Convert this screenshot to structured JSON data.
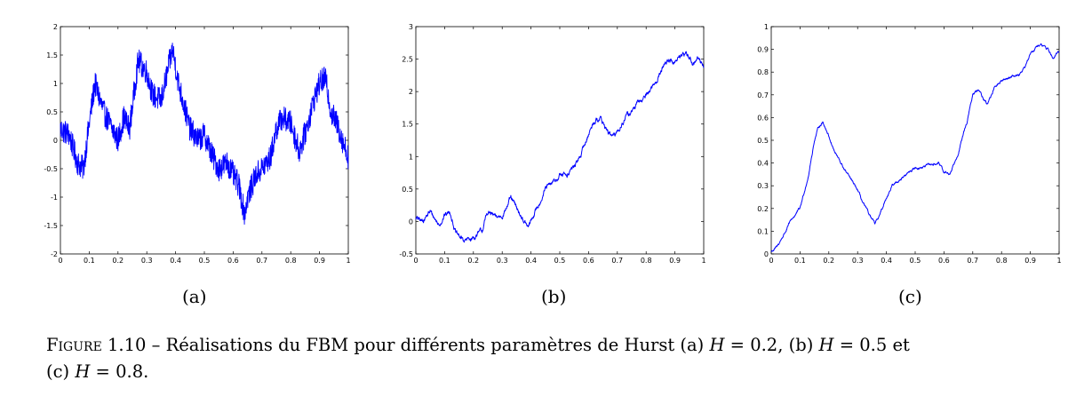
{
  "chart_data": [
    {
      "type": "line",
      "panel_label": "(a)",
      "x_ticks": [
        "0",
        "0.1",
        "0.2",
        "0.3",
        "0.4",
        "0.5",
        "0.6",
        "0.7",
        "0.8",
        "0.9",
        "1"
      ],
      "y_ticks": [
        "-2",
        "-1.5",
        "-1",
        "-0.5",
        "0",
        "0.5",
        "1",
        "1.5",
        "2"
      ],
      "xlim": [
        0,
        1
      ],
      "ylim": [
        -2,
        2
      ],
      "line_color": "#0000ff",
      "noise_amplitude": 0.22,
      "series": [
        {
          "x": [
            0,
            0.03,
            0.06,
            0.08,
            0.1,
            0.12,
            0.15,
            0.18,
            0.2,
            0.22,
            0.24,
            0.26,
            0.27,
            0.3,
            0.32,
            0.35,
            0.38,
            0.39,
            0.41,
            0.43,
            0.45,
            0.48,
            0.5,
            0.53,
            0.55,
            0.58,
            0.6,
            0.62,
            0.64,
            0.65,
            0.68,
            0.7,
            0.73,
            0.75,
            0.77,
            0.8,
            0.83,
            0.86,
            0.88,
            0.9,
            0.92,
            0.94,
            0.96,
            0.98,
            1.0
          ],
          "y": [
            0.2,
            0.1,
            -0.4,
            -0.5,
            0.3,
            1.0,
            0.5,
            0.2,
            0.0,
            0.4,
            0.2,
            1.0,
            1.4,
            1.2,
            0.8,
            0.7,
            1.4,
            1.6,
            1.0,
            0.6,
            0.2,
            0.0,
            0.1,
            -0.3,
            -0.5,
            -0.4,
            -0.6,
            -0.8,
            -1.3,
            -1.0,
            -0.6,
            -0.5,
            -0.3,
            0.2,
            0.4,
            0.3,
            -0.2,
            0.3,
            0.7,
            1.0,
            1.1,
            0.5,
            0.3,
            0.0,
            -0.3
          ]
        }
      ]
    },
    {
      "type": "line",
      "panel_label": "(b)",
      "x_ticks": [
        "0",
        "0.1",
        "0.2",
        "0.3",
        "0.4",
        "0.5",
        "0.6",
        "0.7",
        "0.8",
        "0.9",
        "1"
      ],
      "y_ticks": [
        "-0.5",
        "0",
        "0.5",
        "1",
        "1.5",
        "2",
        "2.5",
        "3"
      ],
      "xlim": [
        0,
        1
      ],
      "ylim": [
        -0.5,
        3
      ],
      "line_color": "#0000ff",
      "noise_amplitude": 0.05,
      "series": [
        {
          "x": [
            0,
            0.02,
            0.05,
            0.08,
            0.1,
            0.12,
            0.14,
            0.17,
            0.2,
            0.23,
            0.25,
            0.28,
            0.3,
            0.33,
            0.35,
            0.37,
            0.39,
            0.41,
            0.43,
            0.45,
            0.48,
            0.5,
            0.53,
            0.56,
            0.58,
            0.6,
            0.62,
            0.64,
            0.67,
            0.69,
            0.72,
            0.75,
            0.78,
            0.81,
            0.84,
            0.86,
            0.88,
            0.9,
            0.92,
            0.94,
            0.96,
            0.98,
            1.0
          ],
          "y": [
            0.05,
            0.0,
            0.15,
            -0.05,
            0.1,
            0.15,
            -0.2,
            -0.3,
            -0.25,
            -0.15,
            0.15,
            0.05,
            0.1,
            0.35,
            0.2,
            0.05,
            -0.1,
            0.1,
            0.3,
            0.5,
            0.6,
            0.7,
            0.75,
            0.9,
            1.1,
            1.35,
            1.55,
            1.6,
            1.35,
            1.3,
            1.55,
            1.7,
            1.85,
            2.0,
            2.2,
            2.4,
            2.5,
            2.45,
            2.55,
            2.6,
            2.45,
            2.5,
            2.4
          ]
        }
      ]
    },
    {
      "type": "line",
      "panel_label": "(c)",
      "x_ticks": [
        "0",
        "0.1",
        "0.2",
        "0.3",
        "0.4",
        "0.5",
        "0.6",
        "0.7",
        "0.8",
        "0.9",
        "1"
      ],
      "y_ticks": [
        "0",
        "0.1",
        "0.2",
        "0.3",
        "0.4",
        "0.5",
        "0.6",
        "0.7",
        "0.8",
        "0.9",
        "1"
      ],
      "xlim": [
        0,
        1
      ],
      "ylim": [
        0,
        1
      ],
      "line_color": "#0000ff",
      "noise_amplitude": 0.007,
      "series": [
        {
          "x": [
            0,
            0.02,
            0.05,
            0.07,
            0.1,
            0.13,
            0.15,
            0.165,
            0.18,
            0.2,
            0.22,
            0.25,
            0.28,
            0.3,
            0.32,
            0.35,
            0.36,
            0.38,
            0.4,
            0.42,
            0.45,
            0.48,
            0.5,
            0.52,
            0.55,
            0.58,
            0.6,
            0.62,
            0.65,
            0.68,
            0.7,
            0.72,
            0.75,
            0.78,
            0.8,
            0.83,
            0.86,
            0.88,
            0.9,
            0.92,
            0.94,
            0.96,
            0.98,
            1.0
          ],
          "y": [
            0.01,
            0.03,
            0.1,
            0.15,
            0.2,
            0.35,
            0.5,
            0.56,
            0.58,
            0.52,
            0.45,
            0.38,
            0.32,
            0.28,
            0.22,
            0.15,
            0.13,
            0.18,
            0.25,
            0.3,
            0.33,
            0.36,
            0.38,
            0.38,
            0.39,
            0.4,
            0.36,
            0.35,
            0.45,
            0.58,
            0.7,
            0.72,
            0.66,
            0.74,
            0.76,
            0.78,
            0.79,
            0.82,
            0.88,
            0.91,
            0.92,
            0.9,
            0.86,
            0.89
          ]
        }
      ]
    }
  ],
  "caption": {
    "figure_word": "Figure",
    "rest_line1_a": " 1.10 – Réalisations du FBM pour différents paramètres de Hurst (a) ",
    "h_var": "H",
    "eq_a": " = 0.2, (b) ",
    "eq_b": " = 0.5 et",
    "line2_prefix": "(c) ",
    "eq_c": " = 0.8."
  }
}
